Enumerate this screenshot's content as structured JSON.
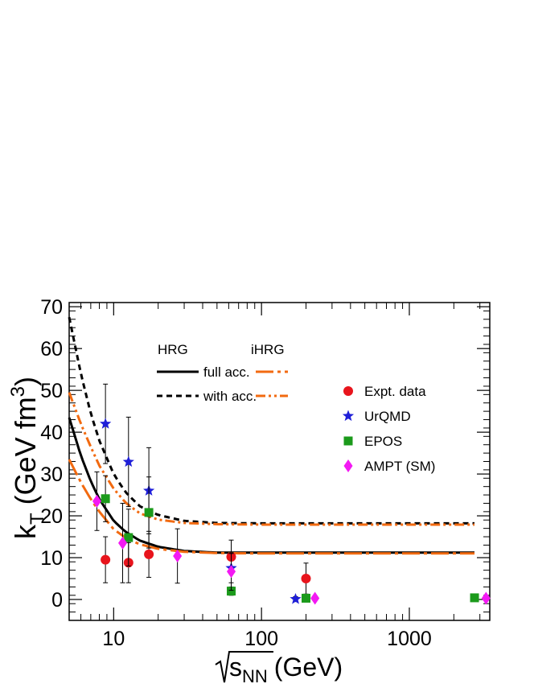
{
  "chart_data": {
    "type": "scatter",
    "xlabel": "√s_NN (GeV)",
    "xlabel_parts": {
      "root": "s",
      "sub": "NN",
      "unit": "(GeV)"
    },
    "ylabel_parts": {
      "main": "k",
      "sub": "T",
      "unit": "(GeV fm",
      "sup": "3",
      "close": ")"
    },
    "xscale": "log",
    "xlim": [
      5,
      3500
    ],
    "ylim": [
      -5,
      71
    ],
    "xticks": [
      10,
      100,
      1000
    ],
    "xtick_labels": [
      "10",
      "100",
      "1000"
    ],
    "yticks": [
      0,
      10,
      20,
      30,
      40,
      50,
      60,
      70
    ],
    "ytick_labels": [
      "0",
      "10",
      "20",
      "30",
      "40",
      "50",
      "60",
      "70"
    ],
    "legend": {
      "hrg_header": "HRG",
      "ihrg_header": "iHRG",
      "full_label": "full acc.",
      "with_label": "with acc.",
      "placement": "top-right"
    },
    "model_curves": [
      {
        "name": "HRG full acc.",
        "color": "#000000",
        "style": "solid",
        "x": [
          5,
          6,
          7,
          8,
          10,
          12,
          15,
          20,
          30,
          50,
          100,
          200,
          500,
          1000,
          2760
        ],
        "y": [
          43.5,
          34.4,
          28.3,
          24.0,
          18.8,
          16.2,
          14.1,
          12.6,
          11.6,
          11.2,
          11.2,
          11.2,
          11.2,
          11.2,
          11.2
        ]
      },
      {
        "name": "HRG with acc.",
        "color": "#000000",
        "style": "dashed",
        "x": [
          5,
          6,
          7,
          8,
          10,
          12,
          15,
          20,
          30,
          50,
          100,
          200,
          500,
          1000,
          2760
        ],
        "y": [
          67.5,
          54.0,
          44.5,
          38.0,
          30.0,
          25.7,
          22.3,
          20.2,
          18.8,
          18.3,
          18.2,
          18.2,
          18.2,
          18.2,
          18.2
        ]
      },
      {
        "name": "iHRG full acc.",
        "color": "#f26a10",
        "style": "longdash-dot",
        "x": [
          5,
          6,
          7,
          8,
          10,
          12,
          15,
          20,
          30,
          50,
          100,
          200,
          500,
          1000,
          2760
        ],
        "y": [
          33.5,
          28.0,
          24.0,
          21.0,
          16.8,
          14.8,
          13.2,
          12.1,
          11.4,
          11.1,
          11.0,
          11.0,
          11.0,
          11.0,
          11.0
        ]
      },
      {
        "name": "iHRG with acc.",
        "color": "#f26a10",
        "style": "dash-dot-dot",
        "x": [
          5,
          6,
          7,
          8,
          10,
          12,
          15,
          20,
          30,
          50,
          100,
          200,
          500,
          1000,
          2760
        ],
        "y": [
          49.5,
          42.0,
          36.5,
          32.0,
          26.5,
          23.2,
          20.6,
          19.1,
          18.3,
          18.0,
          17.9,
          17.9,
          17.9,
          17.9,
          17.9
        ]
      }
    ],
    "series": [
      {
        "name": "Expt. data",
        "marker": "circle",
        "color": "#e8141c",
        "points": [
          {
            "x": 8.8,
            "y": 9.5,
            "err": 5.5
          },
          {
            "x": 12.6,
            "y": 8.8,
            "err": 4.8
          },
          {
            "x": 17.3,
            "y": 10.8,
            "err": 5.5
          },
          {
            "x": 62.4,
            "y": 10.2,
            "err": 4.0
          },
          {
            "x": 200,
            "y": 5.0,
            "err": 3.7
          }
        ]
      },
      {
        "name": "UrQMD",
        "marker": "star",
        "color": "#1f1fd8",
        "points": [
          {
            "x": 8.8,
            "y": 42.0,
            "err": 9.5
          },
          {
            "x": 12.6,
            "y": 32.9,
            "err": 10.7
          },
          {
            "x": 17.3,
            "y": 26.0,
            "err": 10.3
          },
          {
            "x": 62.4,
            "y": 7.5,
            "err": 3.5
          },
          {
            "x": 170,
            "y": 0.1,
            "err": 0.6
          }
        ]
      },
      {
        "name": "EPOS",
        "marker": "square",
        "color": "#1b9a1b",
        "points": [
          {
            "x": 8.8,
            "y": 24.1,
            "err": 5.5
          },
          {
            "x": 12.6,
            "y": 14.8,
            "err": 6.8
          },
          {
            "x": 17.3,
            "y": 20.8,
            "err": 8.5
          },
          {
            "x": 62.4,
            "y": 2.0,
            "err": 1.0
          },
          {
            "x": 200,
            "y": 0.3,
            "err": 0.6
          },
          {
            "x": 2760,
            "y": 0.4,
            "err": 0.8
          }
        ]
      },
      {
        "name": "AMPT (SM)",
        "marker": "diamond",
        "color": "#f319f3",
        "points": [
          {
            "x": 7.7,
            "y": 23.5,
            "err": 7.0
          },
          {
            "x": 11.5,
            "y": 13.5,
            "err": 9.5
          },
          {
            "x": 27,
            "y": 10.4,
            "err": 6.5
          },
          {
            "x": 62.4,
            "y": 6.7,
            "err": 4.5
          },
          {
            "x": 230,
            "y": 0.3,
            "err": 0.0
          },
          {
            "x": 3300,
            "y": 0.3,
            "err": 0.0
          }
        ]
      }
    ]
  }
}
